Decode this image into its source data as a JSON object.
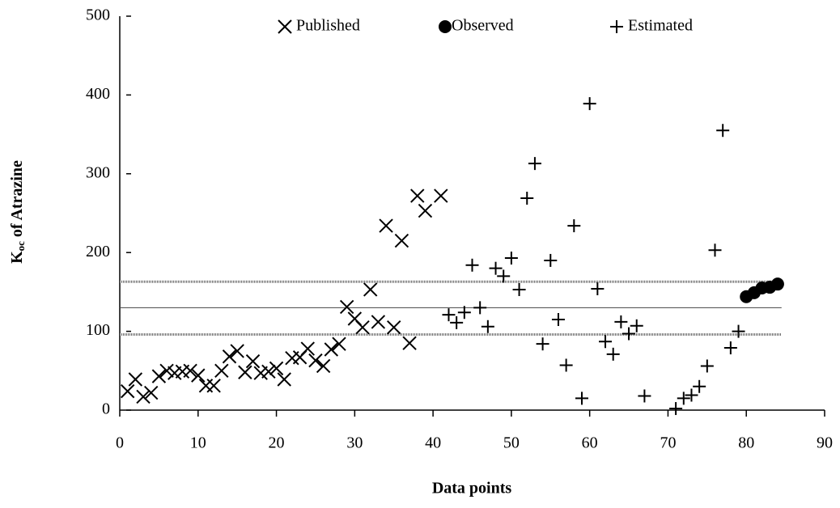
{
  "chart_data": {
    "type": "scatter",
    "xlabel": "Data points",
    "ylabel": {
      "main": "K",
      "sub": "oc",
      "rest": " of Atrazine"
    },
    "xlim": [
      0,
      90
    ],
    "xticks": [
      0,
      10,
      20,
      30,
      40,
      50,
      60,
      70,
      80,
      90
    ],
    "ylim": [
      0,
      500
    ],
    "yticks": [
      0,
      100,
      200,
      300,
      400,
      500
    ],
    "grid": false,
    "legend": "top",
    "series": [
      {
        "name": "Published",
        "marker": "x",
        "color": "#000000",
        "x": [
          1,
          2,
          3,
          4,
          5,
          6,
          7,
          8,
          9,
          10,
          11,
          12,
          13,
          14,
          15,
          16,
          17,
          18,
          19,
          20,
          21,
          22,
          23,
          24,
          25,
          26,
          27,
          28,
          29,
          30,
          31,
          32,
          33,
          34,
          35,
          36,
          37,
          38,
          39,
          41
        ],
        "values": [
          24,
          39,
          17,
          22,
          43,
          50,
          47,
          49,
          50,
          44,
          31,
          31,
          50,
          68,
          75,
          48,
          62,
          47,
          49,
          53,
          39,
          66,
          67,
          78,
          63,
          56,
          77,
          84,
          131,
          116,
          105,
          153,
          112,
          234,
          105,
          215,
          85,
          272,
          253,
          272
        ]
      },
      {
        "name": "Observed",
        "marker": "circle",
        "color": "#000000",
        "x": [
          80,
          81,
          82,
          83,
          84
        ],
        "values": [
          144,
          149,
          155,
          156,
          160
        ]
      },
      {
        "name": "Estimated",
        "marker": "plus",
        "color": "#000000",
        "x": [
          42,
          43,
          44,
          45,
          46,
          47,
          48,
          49,
          50,
          51,
          52,
          53,
          54,
          55,
          56,
          57,
          58,
          59,
          60,
          61,
          62,
          63,
          64,
          65,
          66,
          67,
          71,
          72,
          73,
          74,
          75,
          76,
          77,
          78,
          79
        ],
        "values": [
          121,
          111,
          124,
          184,
          130,
          106,
          180,
          170,
          193,
          153,
          269,
          313,
          84,
          190,
          115,
          57,
          234,
          15,
          389,
          154,
          87,
          71,
          112,
          97,
          107,
          18,
          2,
          15,
          19,
          30,
          56,
          203,
          355,
          79,
          100
        ]
      }
    ],
    "reference_lines": [
      {
        "value": 163,
        "style": "dotted",
        "xrange": [
          0,
          84.5
        ]
      },
      {
        "value": 130,
        "style": "solid",
        "xrange": [
          0,
          84.5
        ]
      },
      {
        "value": 96,
        "style": "dotted",
        "xrange": [
          0,
          84.5
        ]
      }
    ]
  }
}
